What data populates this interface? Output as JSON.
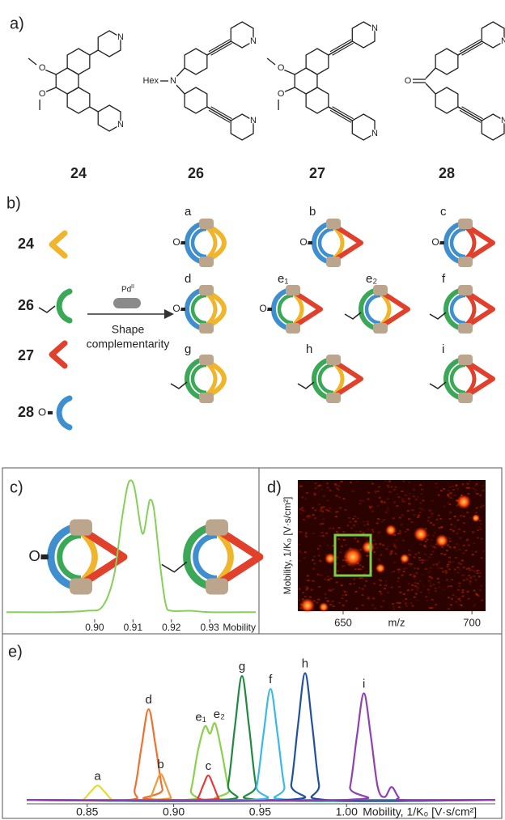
{
  "panel_a": {
    "label": "a)",
    "compounds": [
      "24",
      "26",
      "27",
      "28"
    ],
    "atom_N": "N",
    "atom_O": "O",
    "substituent": "Hex"
  },
  "panel_b": {
    "label": "b)",
    "ligands": [
      "24",
      "26",
      "27",
      "28"
    ],
    "reagent": "Pd",
    "reagent_charge": "II",
    "condition": [
      "Shape",
      "complementarity"
    ],
    "cages": [
      "a",
      "b",
      "c",
      "d",
      "e₁",
      "e₂",
      "f",
      "g",
      "h",
      "i"
    ]
  },
  "chart_data": [
    {
      "type": "line",
      "label": "c)",
      "x": [
        0.877,
        0.89,
        0.898,
        0.902,
        0.905,
        0.907,
        0.9085,
        0.9095,
        0.9105,
        0.912,
        0.9128,
        0.9138,
        0.9145,
        0.9155,
        0.917,
        0.9185,
        0.92,
        0.925,
        0.93,
        0.942
      ],
      "series": [
        {
          "color": "#86d05a",
          "values": [
            4,
            4,
            5,
            8,
            30,
            70,
            95,
            100,
            93,
            66,
            62,
            78,
            86,
            78,
            40,
            10,
            5,
            5,
            4,
            4
          ]
        }
      ],
      "xlim": [
        0.8764,
        0.9424
      ],
      "ylim": [
        0,
        105
      ],
      "xticks": [
        {
          "value": 0.9,
          "label": "0.90"
        },
        {
          "value": 0.91,
          "label": "0.91"
        },
        {
          "value": 0.92,
          "label": "0.92"
        },
        {
          "value": 0.93,
          "label": "0.93"
        }
      ],
      "xlabel": "Mobility"
    },
    {
      "type": "heatmap",
      "label": "d)",
      "xlim": [
        632.4,
        705.3
      ],
      "xticks": [
        650,
        700
      ],
      "xlabel": "m/z",
      "ylabel": "Mobility, 1/K₀ [V·s/cm²]"
    },
    {
      "type": "line",
      "label": "e)",
      "series": [
        {
          "name": "a",
          "color": "#e2dc3a",
          "x": [
            0.815,
            0.844,
            0.848,
            0.852,
            0.856,
            0.86,
            0.864,
            0.868,
            1.086
          ],
          "values": [
            1,
            1,
            1.5,
            6.7,
            11,
            6.7,
            1.5,
            1,
            1
          ]
        },
        {
          "name": "d",
          "color": "#f07030",
          "x": [
            0.815,
            0.8735,
            0.8775,
            0.8815,
            0.8855,
            0.8895,
            0.8935,
            0.8975,
            1.086
          ],
          "values": [
            1,
            1,
            8.6,
            38.8,
            64,
            38.8,
            8.6,
            1,
            1
          ]
        },
        {
          "name": "b",
          "color": "#f09a3a",
          "x": [
            0.815,
            0.8835,
            0.8865,
            0.8895,
            0.8925,
            0.8955,
            0.8985,
            0.9015,
            1.086
          ],
          "values": [
            1,
            1,
            2.6,
            11.5,
            19,
            11.5,
            2.6,
            1,
            1
          ]
        },
        {
          "labels": [
            "e₁",
            "e₂"
          ],
          "color": "#8cd050",
          "x": [
            0.815,
            0.906,
            0.91,
            0.914,
            0.918,
            0.921,
            0.924,
            0.928,
            0.932,
            0.936,
            1.086
          ],
          "values": [
            1,
            1,
            8,
            35,
            52,
            47,
            54,
            33,
            8,
            1,
            1
          ]
        },
        {
          "name": "c",
          "color": "#e83838",
          "x": [
            0.815,
            0.911,
            0.914,
            0.917,
            0.92,
            0.923,
            0.926,
            0.929,
            1.086
          ],
          "values": [
            1,
            1,
            2.4,
            10.9,
            18,
            10.9,
            2.4,
            1,
            1
          ]
        },
        {
          "name": "g",
          "color": "#1e8a40",
          "x": [
            0.815,
            0.9275,
            0.9315,
            0.9355,
            0.9395,
            0.9435,
            0.9475,
            0.9515,
            1.086
          ],
          "values": [
            1,
            1,
            11.7,
            52.8,
            87,
            52.8,
            11.7,
            1,
            1
          ]
        },
        {
          "name": "f",
          "color": "#3ab8e8",
          "x": [
            0.815,
            0.944,
            0.948,
            0.952,
            0.956,
            0.96,
            0.964,
            0.968,
            1.086
          ],
          "values": [
            1,
            1,
            10.5,
            47.3,
            78,
            47.3,
            10.5,
            1,
            1
          ]
        },
        {
          "name": "h",
          "color": "#2050a0",
          "x": [
            0.815,
            0.964,
            0.968,
            0.972,
            0.976,
            0.98,
            0.984,
            0.988,
            1.086
          ],
          "values": [
            1,
            1,
            12,
            54,
            89,
            54,
            12,
            1,
            1
          ]
        },
        {
          "name": "i",
          "color": "#9040b0",
          "x": [
            0.815,
            0.998,
            1.002,
            1.006,
            1.01,
            1.014,
            1.018,
            1.022,
            1.026,
            1.03,
            1.034,
            1.086
          ],
          "values": [
            1,
            1,
            10,
            45.5,
            75,
            45.5,
            10,
            3,
            10,
            3,
            1,
            1
          ]
        }
      ],
      "xlim": [
        0.815,
        1.086
      ],
      "ylim": [
        0,
        100
      ],
      "xticks": [
        {
          "value": 0.85,
          "label": "0.85"
        },
        {
          "value": 0.9,
          "label": "0.90"
        },
        {
          "value": 0.95,
          "label": "0.95"
        },
        {
          "value": 1.0,
          "label": "1.00"
        }
      ],
      "xlabel": "Mobility, 1/K₀ [V·s/cm²]"
    }
  ]
}
